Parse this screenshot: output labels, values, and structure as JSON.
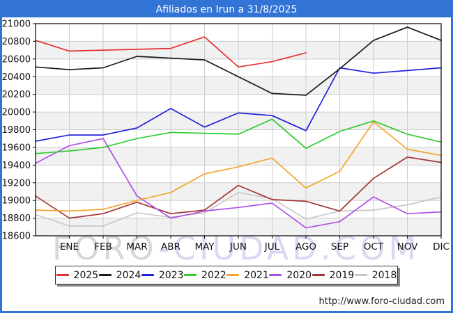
{
  "header": {
    "title": "Afiliados en Irun a 31/8/2025"
  },
  "colors": {
    "frame_blue": "#3273d6",
    "title_text": "#ffffff",
    "plot_border": "#000000",
    "gridline": "#cccccc",
    "band_alt": "#f1f1f1",
    "band_main": "#ffffff",
    "axis_text": "#111111",
    "watermark_left": "#d7d7d7",
    "watermark_right": "#dbd7f3"
  },
  "watermark": {
    "left": "FORO",
    "right": "-CIUDAD.COM"
  },
  "footer": {
    "url": "http://www.foro-ciudad.com"
  },
  "chart_data": {
    "type": "line",
    "title": "Afiliados en Irun a 31/8/2025",
    "categories": [
      "ENE",
      "FEB",
      "MAR",
      "ABR",
      "MAY",
      "JUN",
      "JUL",
      "AGO",
      "SEP",
      "OCT",
      "NOV",
      "DIC"
    ],
    "x_note": "First value of each series is plotted at the left axis edge; the remaining values fall on the ENE..DIC gridlines.",
    "ylim": [
      18600,
      21000
    ],
    "ytick_step": 200,
    "grid": true,
    "legend_position": "bottom",
    "series": [
      {
        "name": "2025",
        "color": "#e53030",
        "values": [
          20810,
          20690,
          20700,
          20710,
          20720,
          20850,
          20510,
          20570,
          20670
        ]
      },
      {
        "name": "2024",
        "color": "#1a1a1a",
        "values": [
          20510,
          20480,
          20500,
          20630,
          20610,
          20590,
          20400,
          20210,
          20190,
          20490,
          20810,
          20960,
          20810
        ]
      },
      {
        "name": "2023",
        "color": "#2121dd",
        "values": [
          19670,
          19740,
          19740,
          19820,
          20040,
          19830,
          19990,
          19960,
          19790,
          20500,
          20440,
          20470,
          20500
        ]
      },
      {
        "name": "2022",
        "color": "#2ecc2e",
        "values": [
          19530,
          19560,
          19600,
          19700,
          19770,
          19760,
          19750,
          19920,
          19590,
          19780,
          19900,
          19750,
          19660
        ]
      },
      {
        "name": "2021",
        "color": "#f5a42c",
        "values": [
          18890,
          18880,
          18900,
          19000,
          19090,
          19300,
          19380,
          19480,
          19140,
          19330,
          19890,
          19580,
          19510
        ]
      },
      {
        "name": "2020",
        "color": "#ae50e6",
        "values": [
          19420,
          19620,
          19700,
          19050,
          18800,
          18880,
          18920,
          18970,
          18690,
          18760,
          19040,
          18850,
          18870
        ]
      },
      {
        "name": "2019",
        "color": "#a33535",
        "values": [
          19050,
          18800,
          18850,
          18980,
          18850,
          18890,
          19170,
          19010,
          18990,
          18880,
          19250,
          19490,
          19430
        ]
      },
      {
        "name": "2018",
        "color": "#c8c8c8",
        "values": [
          18840,
          18710,
          18710,
          18860,
          18810,
          18860,
          19090,
          19020,
          18790,
          18880,
          18890,
          18950,
          19040
        ]
      }
    ]
  }
}
